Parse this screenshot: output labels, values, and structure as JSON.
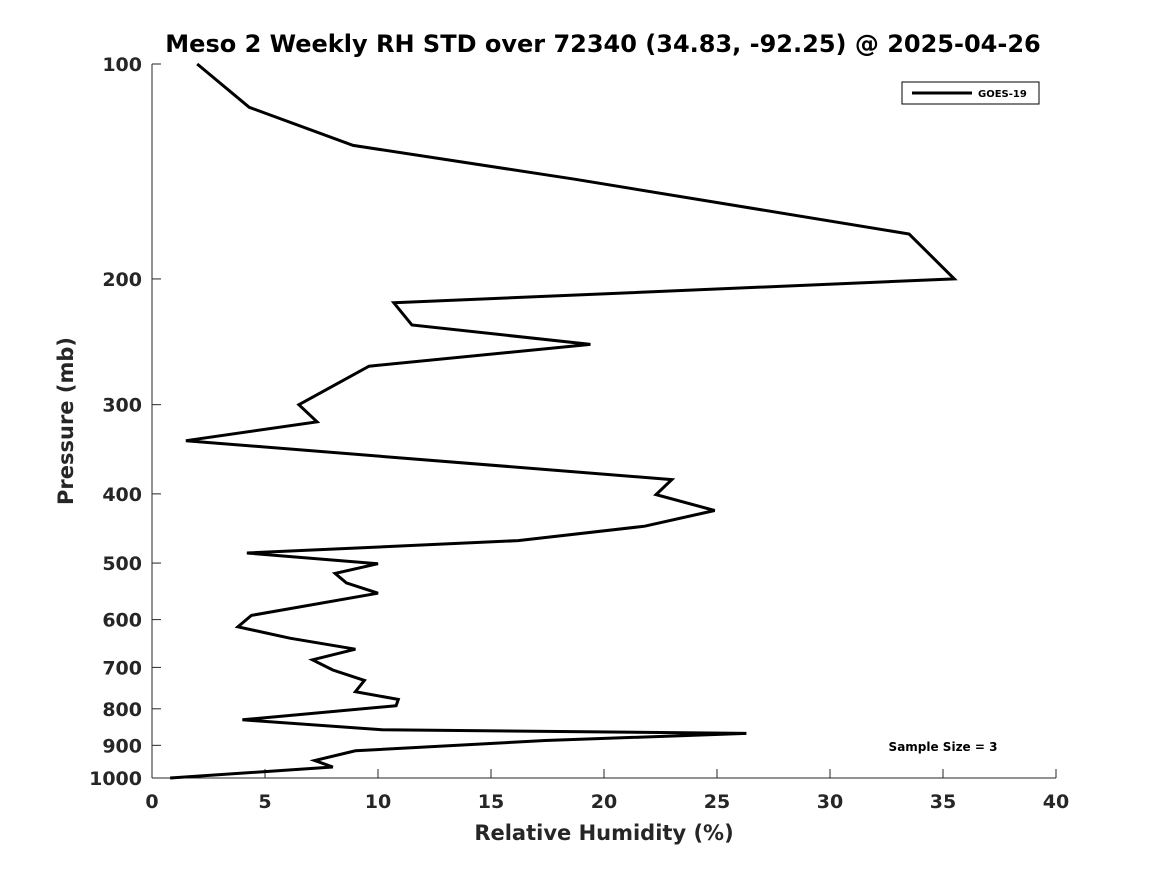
{
  "chart_data": {
    "type": "line",
    "title": "Meso 2 Weekly RH STD over 72340 (34.83, -92.25) @ 2025-04-26",
    "xlabel": "Relative Humidity (%)",
    "ylabel": "Pressure (mb)",
    "xlim": [
      0,
      40
    ],
    "ylim": [
      1000,
      100
    ],
    "yscale": "log",
    "xticks": [
      0,
      5,
      10,
      15,
      20,
      25,
      30,
      35,
      40
    ],
    "yticks": [
      100,
      200,
      300,
      400,
      500,
      600,
      700,
      800,
      900,
      1000
    ],
    "legend_position": "top-right",
    "annotation": "Sample Size = 3",
    "series": [
      {
        "name": "GOES-19",
        "color": "#000000",
        "x": [
          2.0,
          4.3,
          8.9,
          18.7,
          33.5,
          35.5,
          10.7,
          11.5,
          19.4,
          9.6,
          6.5,
          7.3,
          1.5,
          23.0,
          22.3,
          24.9,
          21.8,
          16.2,
          4.2,
          10.0,
          8.1,
          8.6,
          10.0,
          4.4,
          3.8,
          6.1,
          9.0,
          7.1,
          8.0,
          9.4,
          9.0,
          10.9,
          10.8,
          4.0,
          10.2,
          26.3,
          17.4,
          9.0,
          7.2,
          8.0,
          0.8
        ],
        "y": [
          100,
          115,
          130,
          145,
          173,
          200,
          216,
          232,
          247,
          265,
          300,
          317,
          337,
          382,
          401,
          422,
          444,
          465,
          484,
          501,
          517,
          533,
          551,
          592,
          614,
          637,
          660,
          683,
          706,
          730,
          757,
          776,
          792,
          829,
          856,
          866,
          886,
          916,
          945,
          965,
          1000
        ]
      }
    ]
  }
}
